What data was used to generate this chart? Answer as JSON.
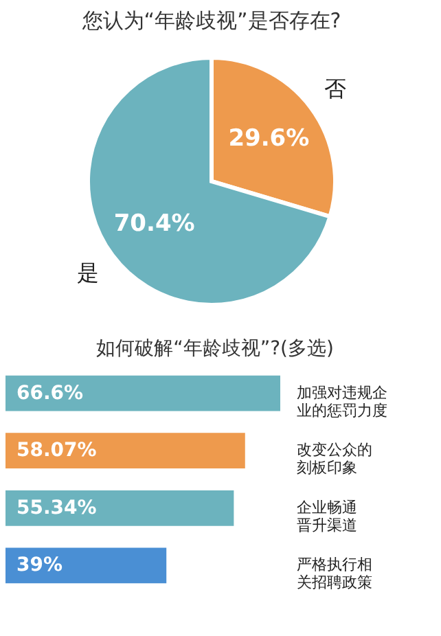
{
  "chart_data": [
    {
      "type": "pie",
      "title": "您认为“年龄歧视”是否存在?",
      "categories": [
        "否",
        "是"
      ],
      "values": [
        29.6,
        70.4
      ],
      "value_labels": [
        "29.6%",
        "70.4%"
      ],
      "colors": [
        "#ee9a4d",
        "#6cb3be"
      ]
    },
    {
      "type": "bar",
      "orientation": "horizontal",
      "title": "如何破解“年龄歧视”?(多选)",
      "categories": [
        "加强对违规企业的惩罚力度",
        "改变公众的刻板印象",
        "企业畅通晋升渠道",
        "严格执行相关招聘政策"
      ],
      "values": [
        66.6,
        58.07,
        55.34,
        39
      ],
      "value_labels": [
        "66.6%",
        "58.07%",
        "55.34%",
        "39%"
      ],
      "colors": [
        "#6cb3be",
        "#ee9a4d",
        "#6cb3be",
        "#4a8fd4"
      ]
    }
  ]
}
